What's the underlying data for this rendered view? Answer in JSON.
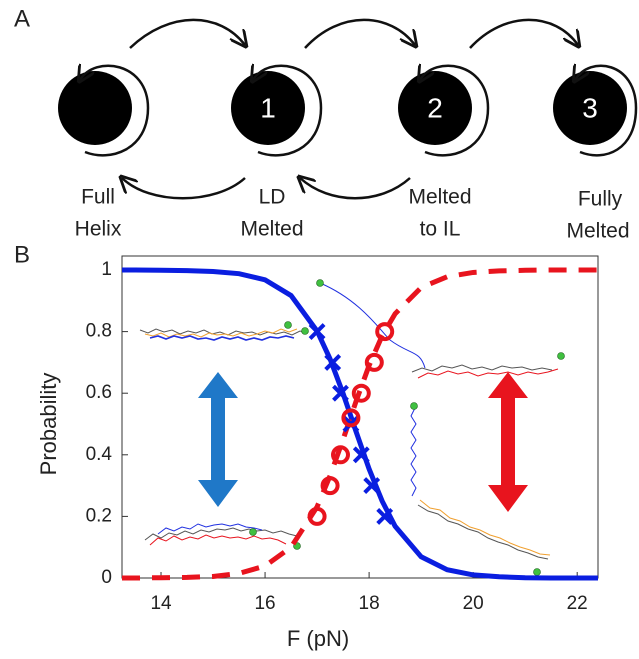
{
  "diagram": {
    "panel_label": "A",
    "states": [
      {
        "caption": [
          "Full",
          "Helix"
        ]
      },
      {
        "number": "1",
        "caption": [
          "LD",
          "Melted"
        ]
      },
      {
        "number": "2",
        "caption": [
          "Melted",
          "to IL"
        ]
      },
      {
        "number": "3",
        "caption": [
          "Fully",
          "Melted"
        ]
      }
    ]
  },
  "chart_data": {
    "type": "line",
    "panel_label": "B",
    "x_label": "F (pN)",
    "y_label": "Probability",
    "xlim": [
      13.25,
      22.4
    ],
    "ylim": [
      0,
      1
    ],
    "xticks": [
      14,
      16,
      18,
      20,
      22
    ],
    "yticks": [
      0,
      0.2,
      0.4,
      0.6,
      0.8,
      1
    ],
    "series": [
      {
        "color": "#0a1ee0",
        "style": "solid",
        "x": [
          13.25,
          13.5,
          14,
          14.5,
          15,
          15.5,
          16,
          16.5,
          17,
          17.25,
          17.5,
          17.75,
          18,
          18.25,
          18.5,
          19,
          19.5,
          20,
          20.5,
          21,
          21.5,
          22,
          22.4
        ],
        "values": [
          1,
          1,
          0.999,
          0.998,
          0.995,
          0.988,
          0.968,
          0.917,
          0.802,
          0.711,
          0.599,
          0.475,
          0.354,
          0.25,
          0.168,
          0.069,
          0.027,
          0.01,
          0.004,
          0.001,
          0,
          0,
          0
        ]
      },
      {
        "color": "#e8141e",
        "style": "dashed",
        "x": [
          13.25,
          13.5,
          14,
          14.5,
          15,
          15.5,
          16,
          16.5,
          17,
          17.25,
          17.5,
          17.75,
          18,
          18.25,
          18.5,
          19,
          19.5,
          20,
          20.5,
          21,
          21.5,
          22,
          22.4
        ],
        "values": [
          0,
          0,
          0.001,
          0.002,
          0.005,
          0.015,
          0.039,
          0.1,
          0.231,
          0.332,
          0.45,
          0.574,
          0.69,
          0.786,
          0.858,
          0.943,
          0.978,
          0.992,
          0.997,
          0.999,
          1,
          1,
          1
        ]
      },
      {
        "color": "#0a1ee0",
        "marker": "x",
        "x": [
          17,
          17.3,
          17.45,
          17.65,
          17.85,
          18.05,
          18.3
        ],
        "values": [
          0.8,
          0.7,
          0.6,
          0.5,
          0.4,
          0.3,
          0.2
        ]
      },
      {
        "color": "#e8141e",
        "marker": "o",
        "x": [
          17,
          17.25,
          17.45,
          17.65,
          17.85,
          18.1,
          18.3
        ],
        "values": [
          0.2,
          0.3,
          0.4,
          0.52,
          0.6,
          0.7,
          0.8
        ]
      }
    ]
  }
}
